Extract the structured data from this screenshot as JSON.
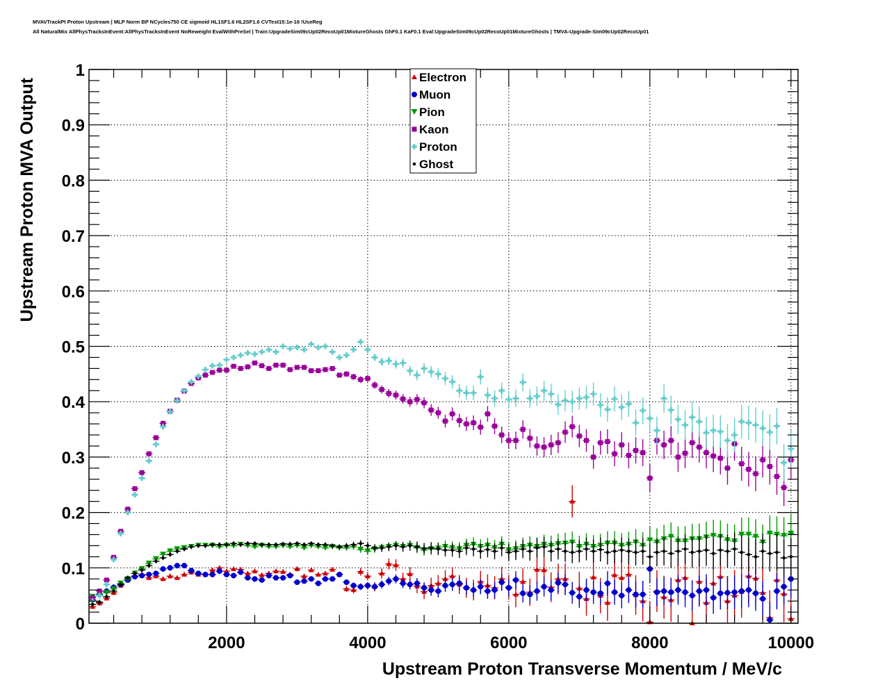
{
  "header": {
    "title_line_1": "MVAVTrackPt Proton Upstream | MLP Norm BP NCycles750 CE sigmoid HL1SF1.6 HL2SF1.6 CVTest15:1e-16 !UseReg",
    "title_line_2": "All NaturalMix AllPhysTracksInEvent:AllPhysTracksInEvent NoReweight EvalWithPreSel | Train:UpgradeSim09cUp02RecoUp01MixtureGhosts GhF0.1 KaF0.1 Eval:UpgradeSim09cUp02RecoUp01MixtureGhosts | TMVA-Upgrade-Sim09cUp02RecoUp01"
  },
  "chart_data": {
    "type": "scatter",
    "title": "",
    "xlabel": "Upstream Proton Transverse Momentum / MeV/c",
    "ylabel": "Upstream Proton MVA Output",
    "xlim": [
      50,
      10100
    ],
    "ylim": [
      0,
      1
    ],
    "grid": true,
    "x_ticks": [
      "2000",
      "4000",
      "6000",
      "8000",
      "10000"
    ],
    "x_tick_values": [
      2000,
      4000,
      6000,
      8000,
      10000
    ],
    "y_ticks": [
      "0",
      "0.1",
      "0.2",
      "0.3",
      "0.4",
      "0.5",
      "0.6",
      "0.7",
      "0.8",
      "0.9",
      "1"
    ],
    "y_tick_values": [
      0,
      0.1,
      0.2,
      0.3,
      0.4,
      0.5,
      0.6,
      0.7,
      0.8,
      0.9,
      1.0
    ],
    "legend_position": "top-center",
    "x": [
      100,
      200,
      300,
      400,
      500,
      600,
      700,
      800,
      900,
      1000,
      1100,
      1200,
      1300,
      1400,
      1500,
      1600,
      1700,
      1800,
      1900,
      2000,
      2100,
      2200,
      2300,
      2400,
      2500,
      2600,
      2700,
      2800,
      2900,
      3000,
      3100,
      3200,
      3300,
      3400,
      3500,
      3600,
      3700,
      3800,
      3900,
      4000,
      4100,
      4200,
      4300,
      4400,
      4500,
      4600,
      4700,
      4800,
      4900,
      5000,
      5100,
      5200,
      5300,
      5400,
      5500,
      5600,
      5700,
      5800,
      5900,
      6000,
      6100,
      6200,
      6300,
      6400,
      6500,
      6600,
      6700,
      6800,
      6900,
      7000,
      7100,
      7200,
      7300,
      7400,
      7500,
      7600,
      7700,
      7800,
      7900,
      8000,
      8100,
      8200,
      8300,
      8400,
      8500,
      8600,
      8700,
      8800,
      8900,
      9000,
      9100,
      9200,
      9300,
      9400,
      9500,
      9600,
      9700,
      9800,
      9900,
      10000
    ],
    "series": [
      {
        "name": "Electron",
        "color": "#cc0000",
        "marker": "triangle-up",
        "values": [
          0.03,
          0.036,
          0.045,
          0.055,
          0.068,
          0.078,
          0.085,
          0.088,
          0.082,
          0.085,
          0.08,
          0.085,
          0.082,
          0.088,
          0.092,
          0.088,
          0.088,
          0.096,
          0.1,
          0.094,
          0.098,
          0.097,
          0.09,
          0.094,
          0.087,
          0.09,
          0.094,
          0.093,
          0.088,
          0.098,
          0.085,
          0.096,
          0.088,
          0.09,
          0.097,
          0.088,
          0.062,
          0.06,
          0.093,
          0.085,
          0.066,
          0.09,
          0.107,
          0.105,
          0.08,
          0.089,
          0.067,
          0.057,
          0.068,
          0.072,
          0.08,
          0.085,
          0.07,
          0.064,
          0.06,
          0.075,
          0.068,
          0.064,
          0.08,
          0.065,
          0.052,
          0.075,
          0.056,
          0.097,
          0.096,
          0.065,
          0.08,
          0.08,
          0.22,
          0.063,
          0.044,
          0.083,
          0.05,
          0.037,
          0.087,
          0.082,
          0.088,
          0.051,
          0.04,
          0.002,
          0.058,
          0.047,
          0.042,
          0.078,
          0.082,
          0.0,
          0.075,
          0.037,
          0.072,
          0.084,
          0.04,
          0.05,
          0.057,
          0.085,
          0.081,
          0.055,
          0.01,
          0.078,
          0.053,
          0.008
        ]
      },
      {
        "name": "Muon",
        "color": "#0000cc",
        "marker": "circle",
        "values": [
          0.042,
          0.052,
          0.058,
          0.065,
          0.07,
          0.078,
          0.084,
          0.086,
          0.088,
          0.09,
          0.098,
          0.1,
          0.104,
          0.104,
          0.095,
          0.09,
          0.088,
          0.088,
          0.094,
          0.088,
          0.086,
          0.092,
          0.082,
          0.08,
          0.078,
          0.086,
          0.082,
          0.082,
          0.086,
          0.074,
          0.076,
          0.08,
          0.072,
          0.08,
          0.08,
          0.088,
          0.074,
          0.068,
          0.066,
          0.068,
          0.066,
          0.07,
          0.076,
          0.08,
          0.072,
          0.07,
          0.072,
          0.064,
          0.06,
          0.058,
          0.068,
          0.07,
          0.072,
          0.064,
          0.06,
          0.066,
          0.058,
          0.06,
          0.074,
          0.064,
          0.078,
          0.054,
          0.052,
          0.058,
          0.066,
          0.06,
          0.073,
          0.07,
          0.055,
          0.048,
          0.06,
          0.056,
          0.054,
          0.072,
          0.056,
          0.05,
          0.06,
          0.052,
          0.052,
          0.098,
          0.056,
          0.058,
          0.056,
          0.06,
          0.056,
          0.05,
          0.058,
          0.06,
          0.046,
          0.054,
          0.055,
          0.056,
          0.058,
          0.06,
          0.054,
          0.044,
          0.006,
          0.058,
          0.066,
          0.08
        ]
      },
      {
        "name": "Pion",
        "color": "#009900",
        "marker": "triangle-down",
        "values": [
          0.048,
          0.05,
          0.055,
          0.062,
          0.072,
          0.08,
          0.09,
          0.098,
          0.108,
          0.116,
          0.124,
          0.13,
          0.134,
          0.136,
          0.138,
          0.14,
          0.14,
          0.14,
          0.138,
          0.14,
          0.14,
          0.142,
          0.14,
          0.138,
          0.14,
          0.138,
          0.138,
          0.14,
          0.138,
          0.14,
          0.136,
          0.14,
          0.138,
          0.136,
          0.138,
          0.136,
          0.136,
          0.138,
          0.133,
          0.13,
          0.134,
          0.136,
          0.138,
          0.14,
          0.138,
          0.14,
          0.136,
          0.132,
          0.134,
          0.135,
          0.138,
          0.136,
          0.134,
          0.14,
          0.142,
          0.138,
          0.14,
          0.136,
          0.142,
          0.132,
          0.134,
          0.138,
          0.14,
          0.138,
          0.142,
          0.14,
          0.143,
          0.144,
          0.146,
          0.138,
          0.142,
          0.138,
          0.14,
          0.144,
          0.144,
          0.14,
          0.142,
          0.146,
          0.14,
          0.15,
          0.146,
          0.152,
          0.156,
          0.148,
          0.148,
          0.152,
          0.152,
          0.155,
          0.158,
          0.156,
          0.15,
          0.148,
          0.16,
          0.16,
          0.156,
          0.146,
          0.162,
          0.16,
          0.158,
          0.162
        ]
      },
      {
        "name": "Kaon",
        "color": "#990099",
        "marker": "square",
        "values": [
          0.046,
          0.058,
          0.078,
          0.119,
          0.166,
          0.206,
          0.243,
          0.272,
          0.306,
          0.335,
          0.361,
          0.383,
          0.403,
          0.419,
          0.433,
          0.443,
          0.448,
          0.453,
          0.457,
          0.457,
          0.464,
          0.46,
          0.463,
          0.47,
          0.465,
          0.46,
          0.466,
          0.466,
          0.458,
          0.462,
          0.462,
          0.456,
          0.456,
          0.458,
          0.46,
          0.448,
          0.45,
          0.445,
          0.44,
          0.442,
          0.43,
          0.422,
          0.415,
          0.412,
          0.405,
          0.4,
          0.404,
          0.398,
          0.385,
          0.38,
          0.365,
          0.378,
          0.366,
          0.36,
          0.362,
          0.354,
          0.378,
          0.356,
          0.34,
          0.33,
          0.33,
          0.35,
          0.334,
          0.32,
          0.318,
          0.322,
          0.326,
          0.345,
          0.355,
          0.338,
          0.33,
          0.3,
          0.326,
          0.328,
          0.306,
          0.322,
          0.303,
          0.312,
          0.308,
          0.262,
          0.33,
          0.322,
          0.33,
          0.3,
          0.307,
          0.326,
          0.318,
          0.308,
          0.302,
          0.298,
          0.28,
          0.324,
          0.288,
          0.278,
          0.27,
          0.295,
          0.283,
          0.265,
          0.245,
          0.295
        ]
      },
      {
        "name": "Proton",
        "color": "#66cccc",
        "marker": "cross",
        "values": [
          0.04,
          0.05,
          0.07,
          0.115,
          0.162,
          0.2,
          0.232,
          0.262,
          0.293,
          0.323,
          0.355,
          0.382,
          0.402,
          0.42,
          0.436,
          0.446,
          0.458,
          0.465,
          0.466,
          0.476,
          0.48,
          0.484,
          0.488,
          0.486,
          0.49,
          0.494,
          0.49,
          0.5,
          0.496,
          0.498,
          0.494,
          0.504,
          0.498,
          0.5,
          0.49,
          0.48,
          0.484,
          0.494,
          0.508,
          0.494,
          0.48,
          0.472,
          0.474,
          0.468,
          0.47,
          0.456,
          0.448,
          0.46,
          0.454,
          0.45,
          0.442,
          0.436,
          0.42,
          0.416,
          0.416,
          0.445,
          0.412,
          0.406,
          0.42,
          0.404,
          0.406,
          0.435,
          0.406,
          0.41,
          0.42,
          0.414,
          0.395,
          0.402,
          0.4,
          0.406,
          0.408,
          0.414,
          0.394,
          0.386,
          0.405,
          0.39,
          0.396,
          0.362,
          0.384,
          0.37,
          0.348,
          0.406,
          0.385,
          0.368,
          0.358,
          0.372,
          0.364,
          0.344,
          0.348,
          0.346,
          0.33,
          0.34,
          0.364,
          0.362,
          0.358,
          0.352,
          0.345,
          0.356,
          0.29,
          0.315
        ]
      },
      {
        "name": "Ghost",
        "color": "#000000",
        "marker": "small-diamond",
        "values": [
          0.034,
          0.038,
          0.048,
          0.058,
          0.07,
          0.082,
          0.09,
          0.096,
          0.104,
          0.112,
          0.118,
          0.124,
          0.13,
          0.134,
          0.138,
          0.14,
          0.14,
          0.142,
          0.142,
          0.142,
          0.144,
          0.142,
          0.144,
          0.144,
          0.142,
          0.142,
          0.142,
          0.143,
          0.143,
          0.144,
          0.142,
          0.144,
          0.142,
          0.142,
          0.14,
          0.138,
          0.14,
          0.142,
          0.144,
          0.14,
          0.136,
          0.136,
          0.138,
          0.14,
          0.138,
          0.14,
          0.138,
          0.135,
          0.136,
          0.134,
          0.132,
          0.132,
          0.13,
          0.136,
          0.134,
          0.13,
          0.133,
          0.13,
          0.136,
          0.128,
          0.13,
          0.134,
          0.13,
          0.136,
          0.138,
          0.13,
          0.134,
          0.13,
          0.128,
          0.13,
          0.134,
          0.13,
          0.133,
          0.128,
          0.13,
          0.132,
          0.13,
          0.128,
          0.13,
          0.12,
          0.128,
          0.13,
          0.126,
          0.13,
          0.134,
          0.128,
          0.13,
          0.132,
          0.126,
          0.132,
          0.13,
          0.134,
          0.128,
          0.124,
          0.12,
          0.13,
          0.126,
          0.128,
          0.118,
          0.12
        ]
      }
    ]
  }
}
